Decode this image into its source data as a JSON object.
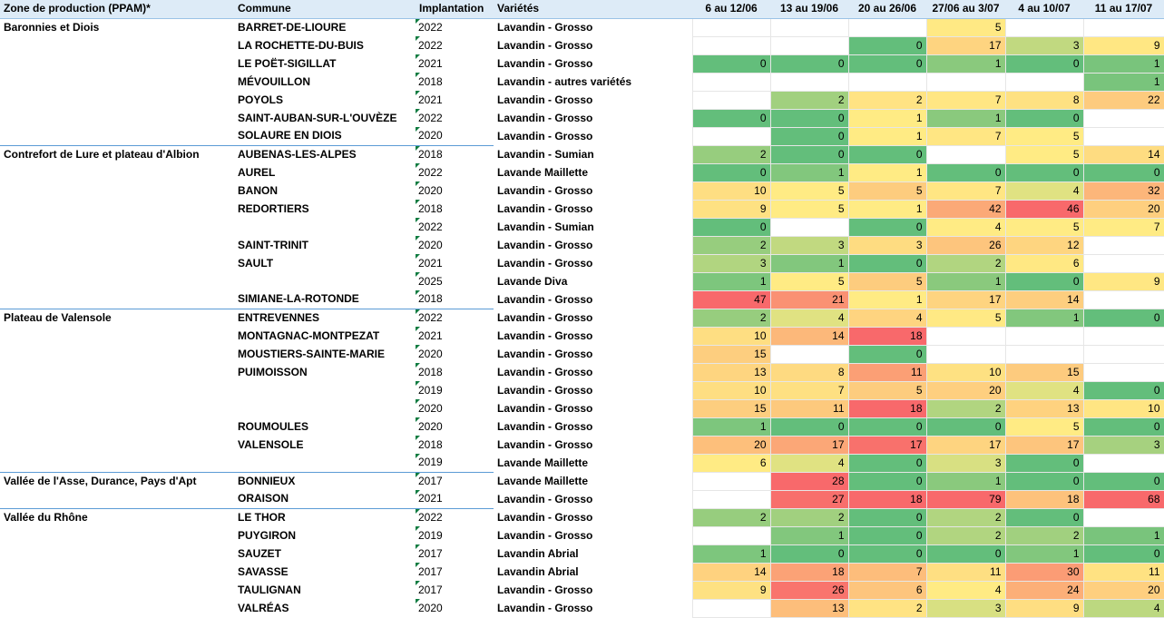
{
  "columns": {
    "zone": "Zone de production (PPAM)*",
    "commune": "Commune",
    "implantation": "Implantation",
    "varietes": "Variétés",
    "weeks": [
      "6 au 12/06",
      "13 au 19/06",
      "20 au 26/06",
      "27/06 au 3/07",
      "4 au 10/07",
      "11 au 17/07"
    ]
  },
  "colors": {
    "green": "#63be7b",
    "yellow": "#ffeb84",
    "red": "#f8696b"
  },
  "rows": [
    {
      "zone": "Baronnies et Diois",
      "commune": "BARRET-DE-LIOURE",
      "year": "2022",
      "variety": "Lavandin - Grosso",
      "values": [
        "",
        "",
        "",
        "5",
        "",
        ""
      ]
    },
    {
      "zone": "",
      "commune": "LA ROCHETTE-DU-BUIS",
      "year": "2022",
      "variety": "Lavandin - Grosso",
      "values": [
        "",
        "",
        "0",
        "17",
        "3",
        "9"
      ]
    },
    {
      "zone": "",
      "commune": "LE POËT-SIGILLAT",
      "year": "2021",
      "variety": "Lavandin - Grosso",
      "values": [
        "0",
        "0",
        "0",
        "1",
        "0",
        "1"
      ]
    },
    {
      "zone": "",
      "commune": "MÉVOUILLON",
      "year": "2018",
      "variety": "Lavandin - autres variétés",
      "values": [
        "",
        "",
        "",
        "",
        "",
        "1"
      ]
    },
    {
      "zone": "",
      "commune": "POYOLS",
      "year": "2021",
      "variety": "Lavandin - Grosso",
      "values": [
        "",
        "2",
        "2",
        "7",
        "8",
        "22"
      ]
    },
    {
      "zone": "",
      "commune": "SAINT-AUBAN-SUR-L'OUVÈZE",
      "year": "2022",
      "variety": "Lavandin - Grosso",
      "values": [
        "0",
        "0",
        "1",
        "1",
        "0",
        ""
      ]
    },
    {
      "zone": "",
      "commune": "SOLAURE EN DIOIS",
      "year": "2020",
      "variety": "Lavandin - Grosso",
      "values": [
        "",
        "0",
        "1",
        "7",
        "5",
        ""
      ]
    },
    {
      "zone": "Contrefort de Lure et plateau d'Albion",
      "commune": "AUBENAS-LES-ALPES",
      "year": "2018",
      "variety": "Lavandin - Sumian",
      "values": [
        "2",
        "0",
        "0",
        "",
        "5",
        "14"
      ]
    },
    {
      "zone": "",
      "commune": "AUREL",
      "year": "2022",
      "variety": "Lavande Maillette",
      "values": [
        "0",
        "1",
        "1",
        "0",
        "0",
        "0"
      ]
    },
    {
      "zone": "",
      "commune": "BANON",
      "year": "2020",
      "variety": "Lavandin - Grosso",
      "values": [
        "10",
        "5",
        "5",
        "7",
        "4",
        "32"
      ]
    },
    {
      "zone": "",
      "commune": "REDORTIERS",
      "year": "2018",
      "variety": "Lavandin - Grosso",
      "values": [
        "9",
        "5",
        "1",
        "42",
        "46",
        "20"
      ]
    },
    {
      "zone": "",
      "commune": "",
      "year": "2022",
      "variety": "Lavandin - Sumian",
      "values": [
        "0",
        "",
        "0",
        "4",
        "5",
        "7"
      ]
    },
    {
      "zone": "",
      "commune": "SAINT-TRINIT",
      "year": "2020",
      "variety": "Lavandin - Grosso",
      "values": [
        "2",
        "3",
        "3",
        "26",
        "12",
        ""
      ]
    },
    {
      "zone": "",
      "commune": "SAULT",
      "year": "2021",
      "variety": "Lavandin - Grosso",
      "values": [
        "3",
        "1",
        "0",
        "2",
        "6",
        ""
      ]
    },
    {
      "zone": "",
      "commune": "",
      "year": "2025",
      "variety": "Lavande Diva",
      "values": [
        "1",
        "5",
        "5",
        "1",
        "0",
        "9"
      ]
    },
    {
      "zone": "",
      "commune": "SIMIANE-LA-ROTONDE",
      "year": "2018",
      "variety": "Lavandin - Grosso",
      "values": [
        "47",
        "21",
        "1",
        "17",
        "14",
        ""
      ]
    },
    {
      "zone": "Plateau de Valensole",
      "commune": "ENTREVENNES",
      "year": "2022",
      "variety": "Lavandin - Grosso",
      "values": [
        "2",
        "4",
        "4",
        "5",
        "1",
        "0"
      ]
    },
    {
      "zone": "",
      "commune": "MONTAGNAC-MONTPEZAT",
      "year": "2021",
      "variety": "Lavandin - Grosso",
      "values": [
        "10",
        "14",
        "18",
        "",
        "",
        ""
      ]
    },
    {
      "zone": "",
      "commune": "MOUSTIERS-SAINTE-MARIE",
      "year": "2020",
      "variety": "Lavandin - Grosso",
      "values": [
        "15",
        "",
        "0",
        "",
        "",
        ""
      ]
    },
    {
      "zone": "",
      "commune": "PUIMOISSON",
      "year": "2018",
      "variety": "Lavandin - Grosso",
      "values": [
        "13",
        "8",
        "11",
        "10",
        "15",
        ""
      ]
    },
    {
      "zone": "",
      "commune": "",
      "year": "2019",
      "variety": "Lavandin - Grosso",
      "values": [
        "10",
        "7",
        "5",
        "20",
        "4",
        "0"
      ]
    },
    {
      "zone": "",
      "commune": "",
      "year": "2020",
      "variety": "Lavandin - Grosso",
      "values": [
        "15",
        "11",
        "18",
        "2",
        "13",
        "10"
      ]
    },
    {
      "zone": "",
      "commune": "ROUMOULES",
      "year": "2020",
      "variety": "Lavandin - Grosso",
      "values": [
        "1",
        "0",
        "0",
        "0",
        "5",
        "0"
      ]
    },
    {
      "zone": "",
      "commune": "VALENSOLE",
      "year": "2018",
      "variety": "Lavandin - Grosso",
      "values": [
        "20",
        "17",
        "17",
        "17",
        "17",
        "3"
      ]
    },
    {
      "zone": "",
      "commune": "",
      "year": "2019",
      "variety": "Lavande Maillette",
      "values": [
        "6",
        "4",
        "0",
        "3",
        "0",
        ""
      ]
    },
    {
      "zone": "Vallée de l'Asse, Durance, Pays d'Apt",
      "commune": "BONNIEUX",
      "year": "2017",
      "variety": "Lavande Maillette",
      "values": [
        "",
        "28",
        "0",
        "1",
        "0",
        "0"
      ]
    },
    {
      "zone": "",
      "commune": "ORAISON",
      "year": "2021",
      "variety": "Lavandin - Grosso",
      "values": [
        "",
        "27",
        "18",
        "79",
        "18",
        "68"
      ]
    },
    {
      "zone": "Vallée du Rhône",
      "commune": "LE THOR",
      "year": "2022",
      "variety": "Lavandin - Grosso",
      "values": [
        "2",
        "2",
        "0",
        "2",
        "0",
        ""
      ]
    },
    {
      "zone": "",
      "commune": "PUYGIRON",
      "year": "2019",
      "variety": "Lavandin - Grosso",
      "values": [
        "",
        "1",
        "0",
        "2",
        "2",
        "1"
      ]
    },
    {
      "zone": "",
      "commune": "SAUZET",
      "year": "2017",
      "variety": "Lavandin Abrial",
      "values": [
        "1",
        "0",
        "0",
        "0",
        "1",
        "0"
      ]
    },
    {
      "zone": "",
      "commune": "SAVASSE",
      "year": "2017",
      "variety": "Lavandin Abrial",
      "values": [
        "14",
        "18",
        "7",
        "11",
        "30",
        "11"
      ]
    },
    {
      "zone": "",
      "commune": "TAULIGNAN",
      "year": "2017",
      "variety": "Lavandin - Grosso",
      "values": [
        "9",
        "26",
        "6",
        "4",
        "24",
        "20"
      ]
    },
    {
      "zone": "",
      "commune": "VALRÉAS",
      "year": "2020",
      "variety": "Lavandin - Grosso",
      "values": [
        "",
        "13",
        "2",
        "3",
        "9",
        "4"
      ]
    }
  ]
}
